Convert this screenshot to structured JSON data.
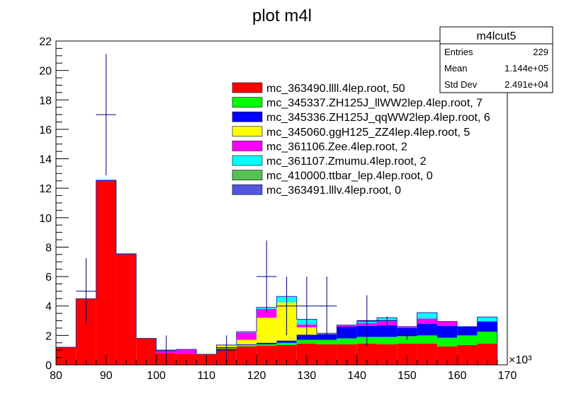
{
  "chart_data": {
    "type": "bar",
    "stacked": true,
    "title": "plot m4l",
    "xlabel": "",
    "ylabel": "",
    "x_multiplier_label": "×10³",
    "xlim": [
      80,
      170
    ],
    "ylim": [
      0,
      22
    ],
    "x_ticks": [
      80,
      90,
      100,
      110,
      120,
      130,
      140,
      150,
      160,
      170
    ],
    "y_ticks": [
      0,
      2,
      4,
      6,
      8,
      10,
      12,
      14,
      16,
      18,
      20,
      22
    ],
    "bin_edges": [
      80,
      84,
      88,
      92,
      96,
      100,
      104,
      108,
      112,
      116,
      120,
      124,
      128,
      132,
      136,
      140,
      144,
      148,
      152,
      156,
      160,
      164,
      168
    ],
    "series": [
      {
        "name": "mc_363490.llll.4lep.root,    50",
        "color": "#ff0000",
        "values": [
          1.2,
          4.5,
          12.5,
          7.5,
          1.8,
          0.8,
          0.75,
          0.72,
          1.1,
          1.25,
          1.3,
          1.35,
          1.45,
          1.4,
          1.4,
          1.45,
          1.4,
          1.45,
          1.45,
          1.25,
          1.35,
          1.45
        ]
      },
      {
        "name": "mc_345337.ZH125J_llWW2lep.4lep.root,    7",
        "color": "#00ff00",
        "values": [
          0,
          0,
          0,
          0,
          0,
          0,
          0,
          0,
          0.05,
          0.1,
          0.1,
          0.15,
          0.25,
          0.3,
          0.4,
          0.45,
          0.5,
          0.5,
          0.55,
          0.6,
          0.65,
          0.8
        ]
      },
      {
        "name": "mc_345336.ZH125J_qqWW2lep.4lep.root,    6",
        "color": "#0000ff",
        "values": [
          0,
          0,
          0.05,
          0.05,
          0,
          0,
          0,
          0,
          0.05,
          0.05,
          0.1,
          0.15,
          0.35,
          0.4,
          0.8,
          0.75,
          0.8,
          0.55,
          0.8,
          0.8,
          0.6,
          0.7
        ]
      },
      {
        "name": "mc_345060.ggH125_ZZ4lep.4lep.root,    5",
        "color": "#ffff00",
        "values": [
          0,
          0,
          0,
          0,
          0,
          0,
          0,
          0,
          0.1,
          0.3,
          1.7,
          2.6,
          0.5,
          0.05,
          0,
          0,
          0,
          0,
          0,
          0,
          0,
          0
        ]
      },
      {
        "name": "mc_361106.Zee.4lep.root,    2",
        "color": "#ff00ff",
        "values": [
          0,
          0,
          0,
          0,
          0,
          0.15,
          0.3,
          0,
          0,
          0.5,
          0.6,
          0,
          0.2,
          0,
          0.1,
          0.2,
          0.3,
          0.1,
          0.35,
          0.3,
          0,
          0
        ]
      },
      {
        "name": "mc_361107.Zmumu.4lep.root,    2",
        "color": "#00ffff",
        "values": [
          0,
          0,
          0,
          0,
          0,
          0,
          0,
          0,
          0.05,
          0.05,
          0.1,
          0.4,
          0.35,
          0,
          0,
          0.1,
          0.2,
          0,
          0.4,
          0,
          0,
          0.3
        ]
      },
      {
        "name": "mc_410000.ttbar_lep.4lep.root,    0",
        "color": "#55c155",
        "values": [
          0,
          0,
          0,
          0,
          0,
          0,
          0,
          0,
          0,
          0,
          0,
          0,
          0,
          0,
          0,
          0,
          0,
          0,
          0,
          0,
          0,
          0
        ]
      },
      {
        "name": "mc_363491.lllv.4lep.root,    0",
        "color": "#5555e0",
        "values": [
          0,
          0,
          0,
          0,
          0,
          0,
          0,
          0,
          0,
          0,
          0,
          0,
          0,
          0,
          0,
          0,
          0,
          0,
          0,
          0,
          0,
          0
        ]
      }
    ],
    "data_points": {
      "x": [
        86,
        90,
        102,
        114,
        122,
        126,
        130,
        134,
        142,
        146,
        150
      ],
      "y": [
        5,
        17,
        1,
        1,
        6,
        4,
        4,
        4,
        3,
        3,
        2
      ],
      "y_err": [
        2.24,
        4.12,
        1,
        1,
        2.45,
        2,
        2,
        2,
        1.73,
        0.3,
        0.3
      ],
      "x_halfwidth": [
        2,
        2,
        2,
        2,
        2,
        2,
        2,
        2,
        2,
        2,
        2
      ]
    },
    "legend_position": "top-center",
    "stats_box": {
      "title": "m4lcut5",
      "rows": [
        {
          "label": "Entries",
          "value": "229"
        },
        {
          "label": "Mean",
          "value": "1.144e+05"
        },
        {
          "label": "Std Dev",
          "value": "2.491e+04"
        }
      ]
    }
  }
}
